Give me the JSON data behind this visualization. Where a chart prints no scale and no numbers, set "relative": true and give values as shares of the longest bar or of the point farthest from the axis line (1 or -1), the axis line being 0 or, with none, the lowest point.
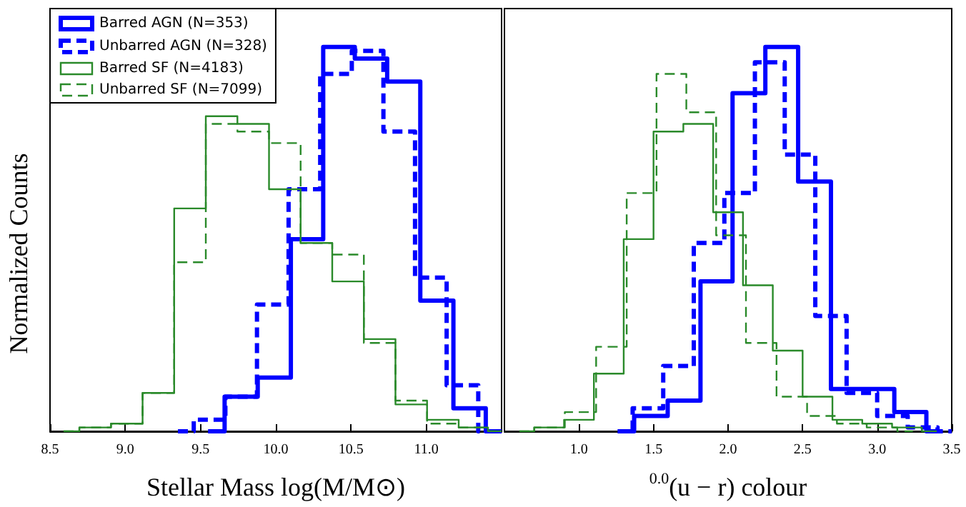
{
  "chart_data": [
    {
      "type": "step",
      "xlabel": "Stellar Mass log(M/M⊙)",
      "ylabel": "Normalized Counts",
      "relative": true,
      "xlim": [
        8.5,
        11.5
      ],
      "xticks": [
        {
          "value": 8.5,
          "label": "8.5"
        },
        {
          "value": 9,
          "label": "9.0"
        },
        {
          "value": 9.5,
          "label": "9.5"
        },
        {
          "value": 10,
          "label": "10.0"
        },
        {
          "value": 10.5,
          "label": "10.5"
        },
        {
          "value": 11,
          "label": "11.0"
        }
      ],
      "tick_labels": "x",
      "legend": "top left",
      "series": [
        {
          "name": "Barred AGN (N=353)",
          "color": "#0000ff",
          "line_style": "solid",
          "x": [
            9.55,
            9.77,
            9.99,
            10.21,
            10.42,
            10.63,
            10.85,
            11.07,
            11.29,
            11.5
          ],
          "values": [
            0,
            0.09,
            0.14,
            0.5,
            1.0,
            0.97,
            0.91,
            0.34,
            0.06,
            0
          ]
        },
        {
          "name": "Unbarred AGN (N=328)",
          "color": "#0000ff",
          "line_style": "dashed",
          "x": [
            9.35,
            9.56,
            9.77,
            9.98,
            10.19,
            10.4,
            10.61,
            10.82,
            11.03,
            11.24,
            11.45
          ],
          "values": [
            0,
            0.03,
            0.09,
            0.33,
            0.63,
            0.93,
            0.99,
            0.78,
            0.4,
            0.12,
            0
          ]
        },
        {
          "name": "Barred SF (N=4183)",
          "color": "#2a8a2a",
          "line_style": "solid",
          "x": [
            8.59,
            8.8,
            9.01,
            9.22,
            9.43,
            9.64,
            9.85,
            10.06,
            10.27,
            10.48,
            10.69,
            10.9,
            11.11,
            11.32,
            11.5
          ],
          "values": [
            0,
            0.01,
            0.02,
            0.1,
            0.58,
            0.82,
            0.8,
            0.63,
            0.49,
            0.39,
            0.24,
            0.07,
            0.03,
            0.01,
            0
          ]
        },
        {
          "name": "Unbarred SF (N=7099)",
          "color": "#2a8a2a",
          "line_style": "dashed",
          "x": [
            8.59,
            8.8,
            9.01,
            9.22,
            9.43,
            9.64,
            9.85,
            10.06,
            10.27,
            10.48,
            10.69,
            10.9,
            11.11,
            11.32,
            11.5
          ],
          "values": [
            0,
            0.01,
            0.02,
            0.1,
            0.44,
            0.8,
            0.78,
            0.75,
            0.49,
            0.46,
            0.23,
            0.08,
            0.02,
            0.01,
            0
          ]
        }
      ]
    },
    {
      "type": "step",
      "xlabel": "$^{0.0}$(u − r) colour",
      "relative": true,
      "xlim": [
        0.5,
        3.5
      ],
      "xticks": [
        {
          "value": 1,
          "label": "1.0"
        },
        {
          "value": 1.5,
          "label": "1.5"
        },
        {
          "value": 2,
          "label": "2.0"
        },
        {
          "value": 2.5,
          "label": "2.5"
        },
        {
          "value": 3,
          "label": "3.0"
        },
        {
          "value": 3.5,
          "label": "3.5"
        }
      ],
      "tick_labels": "x",
      "series": [
        {
          "color": "#0000ff",
          "line_style": "solid",
          "x": [
            1.26,
            1.48,
            1.71,
            1.92,
            2.14,
            2.36,
            2.58,
            2.8,
            3.01,
            3.22,
            3.44
          ],
          "values": [
            0,
            0.04,
            0.08,
            0.39,
            0.88,
            1.0,
            0.65,
            0.11,
            0.11,
            0.05,
            0
          ]
        },
        {
          "color": "#0000ff",
          "line_style": "dashed",
          "x": [
            1.26,
            1.46,
            1.67,
            1.87,
            2.08,
            2.28,
            2.48,
            2.69,
            2.9,
            3.1,
            3.31,
            3.5
          ],
          "values": [
            0,
            0.06,
            0.17,
            0.49,
            0.62,
            0.96,
            0.72,
            0.3,
            0.1,
            0.04,
            0.01,
            0
          ]
        },
        {
          "color": "#2a8a2a",
          "line_style": "solid",
          "x": [
            0.6,
            0.8,
            1.0,
            1.2,
            1.4,
            1.6,
            1.8,
            2.0,
            2.2,
            2.4,
            2.6,
            2.8,
            3.0,
            3.2,
            3.4
          ],
          "values": [
            0,
            0.01,
            0.03,
            0.15,
            0.5,
            0.78,
            0.8,
            0.57,
            0.38,
            0.21,
            0.09,
            0.03,
            0.02,
            0.01,
            0
          ]
        },
        {
          "color": "#2a8a2a",
          "line_style": "dashed",
          "x": [
            0.6,
            0.8,
            1.01,
            1.22,
            1.42,
            1.62,
            1.82,
            2.02,
            2.22,
            2.43,
            2.63,
            2.83,
            3.03,
            3.24
          ],
          "values": [
            0,
            0.01,
            0.05,
            0.22,
            0.62,
            0.93,
            0.83,
            0.51,
            0.23,
            0.09,
            0.04,
            0.02,
            0.01,
            0
          ]
        }
      ]
    }
  ]
}
